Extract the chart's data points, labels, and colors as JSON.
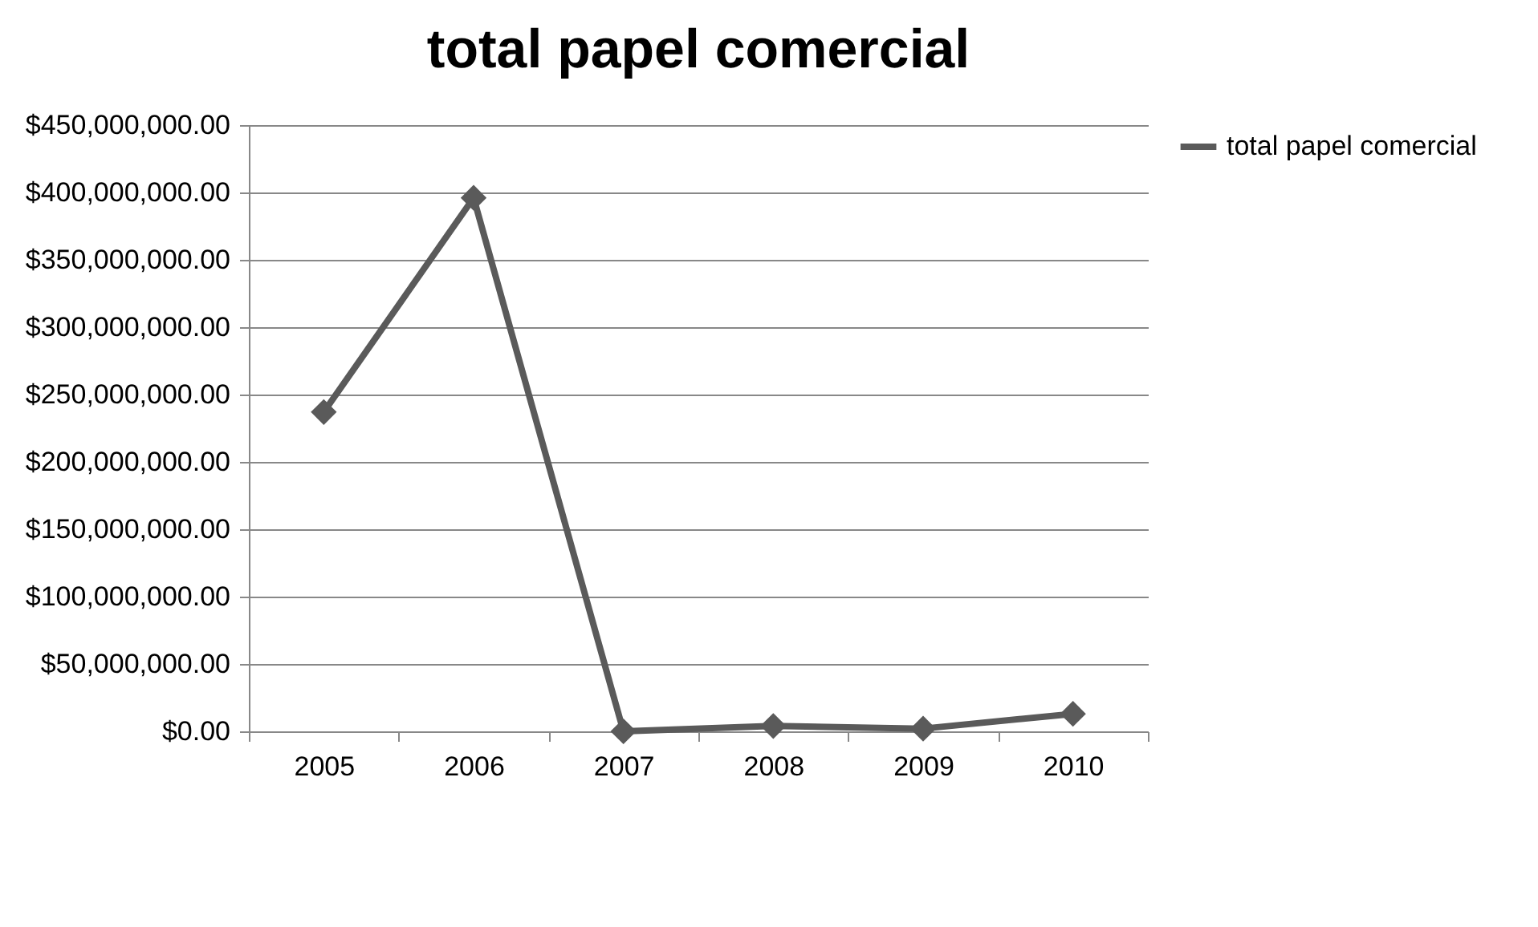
{
  "chart_data": {
    "type": "line",
    "title": "total papel comercial",
    "categories": [
      "2005",
      "2006",
      "2007",
      "2008",
      "2009",
      "2010"
    ],
    "series": [
      {
        "name": "total papel comercial",
        "color": "#5a5a5a",
        "values": [
          237000000,
          396000000,
          0,
          4000000,
          2000000,
          13000000
        ]
      }
    ],
    "ylim": [
      0,
      450000000
    ],
    "yticks": [
      {
        "value": 0,
        "label": "$0.00"
      },
      {
        "value": 50000000,
        "label": "$50,000,000.00"
      },
      {
        "value": 100000000,
        "label": "$100,000,000.00"
      },
      {
        "value": 150000000,
        "label": "$150,000,000.00"
      },
      {
        "value": 200000000,
        "label": "$200,000,000.00"
      },
      {
        "value": 250000000,
        "label": "$250,000,000.00"
      },
      {
        "value": 300000000,
        "label": "$300,000,000.00"
      },
      {
        "value": 350000000,
        "label": "$350,000,000.00"
      },
      {
        "value": 400000000,
        "label": "$400,000,000.00"
      },
      {
        "value": 450000000,
        "label": "$450,000,000.00"
      }
    ],
    "grid": "y",
    "legend": "right",
    "marker": "diamond",
    "line_style": "solid"
  }
}
